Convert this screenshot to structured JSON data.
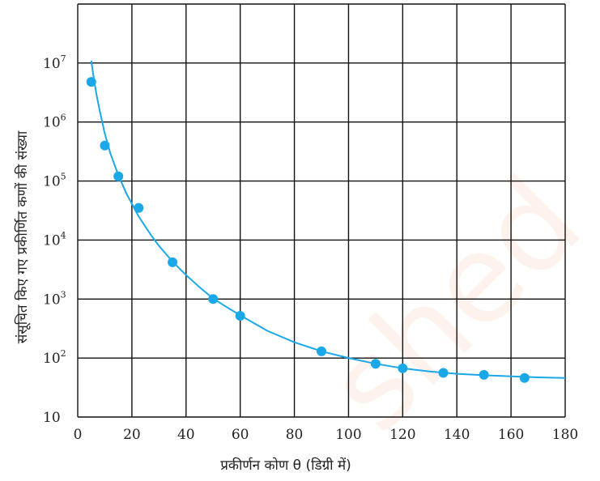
{
  "chart_data": {
    "type": "scatter",
    "title": "",
    "xlabel": "प्रकीर्णन कोण θ (डिग्री में)",
    "ylabel": "संसूचित किए गए प्रकीर्णित कणों की संख्या",
    "xlim": [
      0,
      180
    ],
    "ylim": [
      10,
      100000000
    ],
    "yscale": "log",
    "grid": true,
    "x_ticks": [
      0,
      20,
      40,
      60,
      80,
      100,
      120,
      140,
      160,
      180
    ],
    "y_ticks": [
      {
        "value": 10,
        "base": "10",
        "exp": ""
      },
      {
        "value": 100,
        "base": "10",
        "exp": "2"
      },
      {
        "value": 1000,
        "base": "10",
        "exp": "3"
      },
      {
        "value": 10000,
        "base": "10",
        "exp": "4"
      },
      {
        "value": 100000,
        "base": "10",
        "exp": "5"
      },
      {
        "value": 1000000,
        "base": "10",
        "exp": "6"
      },
      {
        "value": 10000000,
        "base": "10",
        "exp": "7"
      }
    ],
    "series": [
      {
        "kind": "points",
        "color": "#1ba8e8",
        "x": [
          5,
          10,
          15,
          22.5,
          35,
          50,
          60,
          90,
          110,
          120,
          135,
          150,
          165
        ],
        "y": [
          4800000,
          400000,
          120000,
          35000,
          4200,
          1000,
          520,
          130,
          80,
          67,
          56,
          52,
          46
        ]
      },
      {
        "kind": "curve",
        "color": "#1ba8e8",
        "x": [
          5,
          6,
          7,
          8,
          10,
          12,
          15,
          18,
          22.5,
          27,
          30,
          35,
          40,
          45,
          50,
          55,
          60,
          70,
          80,
          90,
          100,
          110,
          120,
          130,
          140,
          150,
          160,
          170,
          180
        ],
        "y": [
          11000000,
          5200000,
          2800000,
          1650000,
          640000,
          300000,
          125000,
          61000,
          25000,
          12200,
          8000,
          4300,
          2550,
          1580,
          1020,
          730,
          530,
          290,
          185,
          130,
          100,
          80,
          67,
          59,
          54,
          51,
          49,
          47,
          46
        ]
      }
    ],
    "watermark": "shed"
  }
}
